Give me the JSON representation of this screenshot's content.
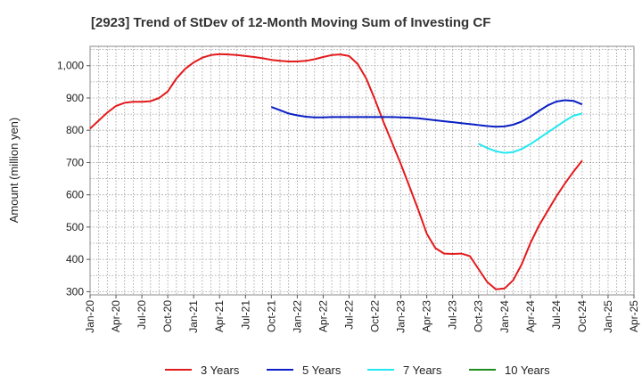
{
  "chart_data": {
    "type": "line",
    "title": "[2923]  Trend of StDev of 12-Month Moving Sum of Investing CF",
    "ylabel": "Amount (million yen)",
    "ylim": [
      290,
      1060
    ],
    "yticks": [
      300,
      400,
      500,
      600,
      700,
      800,
      900,
      1000
    ],
    "ytick_labels": [
      "300",
      "400",
      "500",
      "600",
      "700",
      "800",
      "900",
      "1,000"
    ],
    "xlim": [
      "2020-01",
      "2025-04"
    ],
    "xtick_labels": [
      "Jan-20",
      "Apr-20",
      "Jul-20",
      "Oct-20",
      "Jan-21",
      "Apr-21",
      "Jul-21",
      "Oct-21",
      "Jan-22",
      "Apr-22",
      "Jul-22",
      "Oct-22",
      "Jan-23",
      "Apr-23",
      "Jul-23",
      "Oct-23",
      "Jan-24",
      "Apr-24",
      "Jul-24",
      "Oct-24",
      "Jan-25",
      "Apr-25"
    ],
    "grid": true,
    "legend_position": "bottom",
    "series": [
      {
        "name": "3 Years",
        "color": "#e31a1c",
        "points": [
          [
            "2020-01",
            805
          ],
          [
            "2020-02",
            830
          ],
          [
            "2020-03",
            855
          ],
          [
            "2020-04",
            875
          ],
          [
            "2020-05",
            885
          ],
          [
            "2020-06",
            888
          ],
          [
            "2020-07",
            888
          ],
          [
            "2020-08",
            890
          ],
          [
            "2020-09",
            900
          ],
          [
            "2020-10",
            920
          ],
          [
            "2020-11",
            960
          ],
          [
            "2020-12",
            990
          ],
          [
            "2021-01",
            1010
          ],
          [
            "2021-02",
            1025
          ],
          [
            "2021-03",
            1033
          ],
          [
            "2021-04",
            1036
          ],
          [
            "2021-05",
            1035
          ],
          [
            "2021-06",
            1033
          ],
          [
            "2021-07",
            1030
          ],
          [
            "2021-08",
            1027
          ],
          [
            "2021-09",
            1023
          ],
          [
            "2021-10",
            1018
          ],
          [
            "2021-11",
            1015
          ],
          [
            "2021-12",
            1013
          ],
          [
            "2022-01",
            1013
          ],
          [
            "2022-02",
            1015
          ],
          [
            "2022-03",
            1020
          ],
          [
            "2022-04",
            1027
          ],
          [
            "2022-05",
            1033
          ],
          [
            "2022-06",
            1035
          ],
          [
            "2022-07",
            1030
          ],
          [
            "2022-08",
            1005
          ],
          [
            "2022-09",
            960
          ],
          [
            "2022-10",
            895
          ],
          [
            "2022-11",
            825
          ],
          [
            "2022-12",
            760
          ],
          [
            "2023-01",
            695
          ],
          [
            "2023-02",
            625
          ],
          [
            "2023-03",
            555
          ],
          [
            "2023-04",
            480
          ],
          [
            "2023-05",
            435
          ],
          [
            "2023-06",
            418
          ],
          [
            "2023-07",
            417
          ],
          [
            "2023-08",
            418
          ],
          [
            "2023-09",
            410
          ],
          [
            "2023-10",
            370
          ],
          [
            "2023-11",
            330
          ],
          [
            "2023-12",
            307
          ],
          [
            "2024-01",
            310
          ],
          [
            "2024-02",
            335
          ],
          [
            "2024-03",
            385
          ],
          [
            "2024-04",
            450
          ],
          [
            "2024-05",
            505
          ],
          [
            "2024-06",
            550
          ],
          [
            "2024-07",
            595
          ],
          [
            "2024-08",
            635
          ],
          [
            "2024-09",
            672
          ],
          [
            "2024-10",
            706
          ]
        ]
      },
      {
        "name": "5 Years",
        "color": "#0a1fc4",
        "points": [
          [
            "2021-10",
            872
          ],
          [
            "2021-11",
            862
          ],
          [
            "2021-12",
            852
          ],
          [
            "2022-01",
            846
          ],
          [
            "2022-02",
            842
          ],
          [
            "2022-03",
            840
          ],
          [
            "2022-04",
            840
          ],
          [
            "2022-05",
            841
          ],
          [
            "2022-06",
            841
          ],
          [
            "2022-07",
            841
          ],
          [
            "2022-08",
            841
          ],
          [
            "2022-09",
            841
          ],
          [
            "2022-10",
            841
          ],
          [
            "2022-11",
            841
          ],
          [
            "2022-12",
            841
          ],
          [
            "2023-01",
            840
          ],
          [
            "2023-02",
            839
          ],
          [
            "2023-03",
            837
          ],
          [
            "2023-04",
            834
          ],
          [
            "2023-05",
            831
          ],
          [
            "2023-06",
            828
          ],
          [
            "2023-07",
            825
          ],
          [
            "2023-08",
            822
          ],
          [
            "2023-09",
            819
          ],
          [
            "2023-10",
            816
          ],
          [
            "2023-11",
            813
          ],
          [
            "2023-12",
            811
          ],
          [
            "2024-01",
            812
          ],
          [
            "2024-02",
            817
          ],
          [
            "2024-03",
            827
          ],
          [
            "2024-04",
            842
          ],
          [
            "2024-05",
            860
          ],
          [
            "2024-06",
            877
          ],
          [
            "2024-07",
            889
          ],
          [
            "2024-08",
            893
          ],
          [
            "2024-09",
            891
          ],
          [
            "2024-10",
            880
          ]
        ]
      },
      {
        "name": "7 Years",
        "color": "#22e8f0",
        "points": [
          [
            "2023-10",
            758
          ],
          [
            "2023-11",
            745
          ],
          [
            "2023-12",
            735
          ],
          [
            "2024-01",
            730
          ],
          [
            "2024-02",
            732
          ],
          [
            "2024-03",
            742
          ],
          [
            "2024-04",
            757
          ],
          [
            "2024-05",
            775
          ],
          [
            "2024-06",
            793
          ],
          [
            "2024-07",
            811
          ],
          [
            "2024-08",
            829
          ],
          [
            "2024-09",
            845
          ],
          [
            "2024-10",
            852
          ]
        ]
      },
      {
        "name": "10 Years",
        "color": "#1e8c1e",
        "points": []
      }
    ]
  }
}
